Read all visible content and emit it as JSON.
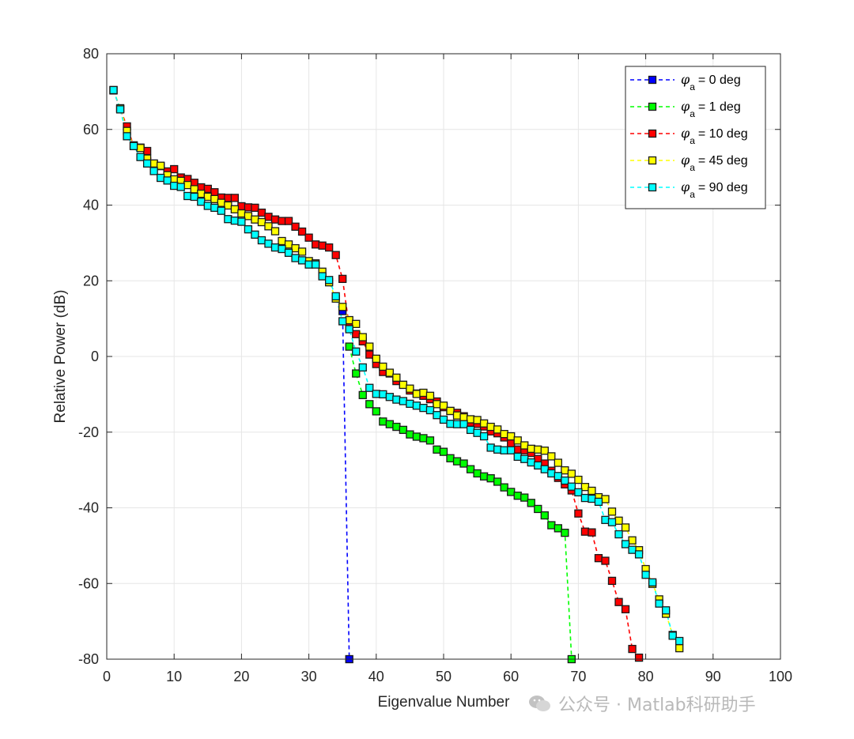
{
  "chart_data": {
    "type": "line",
    "title": "",
    "xlabel": "Eigenvalue Number",
    "ylabel": "Relative Power (dB)",
    "xlim": [
      0,
      100
    ],
    "ylim": [
      -80,
      80
    ],
    "xticks": [
      0,
      10,
      20,
      30,
      40,
      50,
      60,
      70,
      80,
      90,
      100
    ],
    "yticks": [
      80,
      60,
      40,
      20,
      0,
      -20,
      -40,
      -60,
      -80
    ],
    "grid": true,
    "legend_position": "top-right",
    "line_style": "dashed",
    "marker": "square",
    "series": [
      {
        "name": "= 0 deg",
        "symbol": "φ",
        "subscript": "a",
        "color": "#0000ff",
        "x": [
          35,
          36
        ],
        "y": [
          12,
          -80
        ]
      },
      {
        "name": "= 1 deg",
        "symbol": "φ",
        "subscript": "a",
        "color": "#00ff00",
        "x": [
          36,
          37,
          38,
          39,
          40,
          41,
          42,
          43,
          44,
          45,
          46,
          47,
          48,
          49,
          50,
          51,
          52,
          53,
          54,
          55,
          56,
          57,
          58,
          59,
          60,
          61,
          62,
          63,
          64,
          65,
          66,
          67,
          68,
          69
        ],
        "y": [
          2.6,
          -4.5,
          -10.2,
          -12.6,
          -14.5,
          -17.2,
          -17.9,
          -18.6,
          -19.4,
          -20.6,
          -21.2,
          -21.6,
          -22.2,
          -24.6,
          -25.2,
          -26.9,
          -27.7,
          -28.3,
          -29.8,
          -30.9,
          -31.7,
          -32.2,
          -33.1,
          -34.6,
          -35.8,
          -36.8,
          -37.3,
          -38.7,
          -40.3,
          -42.0,
          -44.6,
          -45.4,
          -46.6,
          -80
        ]
      },
      {
        "name": "= 10 deg",
        "symbol": "φ",
        "subscript": "a",
        "color": "#ff0000",
        "x": [
          1,
          2,
          3,
          4,
          5,
          6,
          7,
          8,
          9,
          10,
          11,
          12,
          13,
          14,
          15,
          16,
          17,
          18,
          19,
          20,
          21,
          22,
          23,
          24,
          25,
          26,
          27,
          28,
          29,
          30,
          31,
          32,
          33,
          34,
          35,
          36,
          37,
          38,
          39,
          40,
          41,
          42,
          43,
          44,
          45,
          46,
          47,
          48,
          49,
          50,
          51,
          52,
          53,
          54,
          55,
          56,
          57,
          58,
          59,
          60,
          61,
          62,
          63,
          64,
          65,
          66,
          67,
          68,
          69,
          70,
          71,
          72,
          73,
          74,
          75,
          76,
          77,
          78,
          79
        ],
        "y": [
          70.3,
          65.4,
          60.8,
          55.6,
          55.2,
          54.3,
          50.8,
          50.3,
          48.9,
          49.5,
          47.3,
          46.9,
          45.9,
          44.7,
          44.3,
          43.4,
          42.0,
          41.9,
          41.9,
          39.7,
          39.4,
          39.3,
          38.0,
          36.9,
          36.2,
          35.8,
          35.8,
          34.3,
          33.0,
          31.4,
          29.6,
          29.3,
          28.8,
          26.8,
          20.5,
          7.7,
          5.9,
          4.0,
          0.5,
          -2.0,
          -4.1,
          -4.5,
          -6.5,
          -7.5,
          -9.0,
          -9.8,
          -10.4,
          -11.3,
          -11.9,
          -13.4,
          -14.4,
          -14.9,
          -15.8,
          -17.5,
          -17.8,
          -18.5,
          -19.8,
          -20.3,
          -21.4,
          -23.0,
          -24.6,
          -24.8,
          -25.5,
          -27.1,
          -28.3,
          -30.2,
          -32.1,
          -33.8,
          -35.4,
          -41.5,
          -46.3,
          -46.5,
          -53.3,
          -54.0,
          -59.3,
          -64.9,
          -66.8,
          -77.3,
          -79.6
        ]
      },
      {
        "name": "= 45 deg",
        "symbol": "φ",
        "subscript": "a",
        "color": "#ffff00",
        "x": [
          1,
          2,
          3,
          4,
          5,
          6,
          7,
          8,
          9,
          10,
          11,
          12,
          13,
          14,
          15,
          16,
          17,
          18,
          19,
          20,
          21,
          22,
          23,
          24,
          25,
          26,
          27,
          28,
          29,
          30,
          31,
          32,
          33,
          34,
          35,
          36,
          37,
          38,
          39,
          40,
          41,
          42,
          43,
          44,
          45,
          46,
          47,
          48,
          49,
          50,
          51,
          52,
          53,
          54,
          55,
          56,
          57,
          58,
          59,
          60,
          61,
          62,
          63,
          64,
          65,
          66,
          67,
          68,
          69,
          70,
          71,
          72,
          73,
          74,
          75,
          76,
          77,
          78,
          79,
          80,
          81,
          82,
          83,
          84,
          85
        ],
        "y": [
          70.4,
          65.6,
          59.6,
          55.8,
          55.1,
          52.3,
          51.0,
          50.4,
          47.9,
          46.8,
          46.4,
          45.3,
          44.2,
          43.0,
          42.2,
          41.6,
          40.6,
          39.9,
          38.9,
          37.8,
          37.1,
          36.2,
          35.5,
          34.4,
          33.1,
          30.5,
          29.6,
          28.6,
          27.7,
          25.2,
          24.6,
          22.4,
          19.6,
          15.3,
          13.1,
          9.6,
          8.6,
          5.1,
          2.6,
          -0.6,
          -2.7,
          -4.3,
          -5.6,
          -7.5,
          -8.5,
          -9.9,
          -9.6,
          -10.4,
          -12.6,
          -13.0,
          -14.4,
          -15.6,
          -16.1,
          -16.6,
          -16.8,
          -17.7,
          -18.6,
          -19.3,
          -20.5,
          -21.1,
          -22.2,
          -23.5,
          -24.4,
          -24.6,
          -24.9,
          -26.4,
          -28.1,
          -30.1,
          -31.0,
          -32.6,
          -34.5,
          -35.5,
          -37.2,
          -37.7,
          -41.0,
          -43.4,
          -45.2,
          -48.6,
          -51.2,
          -56.2,
          -60.1,
          -64.2,
          -68.0,
          -73.6,
          -77.1
        ]
      },
      {
        "name": "= 90 deg",
        "symbol": "φ",
        "subscript": "a",
        "color": "#00ffff",
        "x": [
          1,
          2,
          3,
          4,
          5,
          6,
          7,
          8,
          9,
          10,
          11,
          12,
          13,
          14,
          15,
          16,
          17,
          18,
          19,
          20,
          21,
          22,
          23,
          24,
          25,
          26,
          27,
          28,
          29,
          30,
          31,
          32,
          33,
          34,
          35,
          36,
          37,
          38,
          39,
          40,
          41,
          42,
          43,
          44,
          45,
          46,
          47,
          48,
          49,
          50,
          51,
          52,
          53,
          54,
          55,
          56,
          57,
          58,
          59,
          60,
          61,
          62,
          63,
          64,
          65,
          66,
          67,
          68,
          69,
          70,
          71,
          72,
          73,
          74,
          75,
          76,
          77,
          78,
          79,
          80,
          81,
          82,
          83,
          84,
          85
        ],
        "y": [
          70.4,
          65.3,
          58.2,
          55.6,
          52.7,
          51.0,
          49.0,
          47.2,
          46.5,
          45.1,
          44.8,
          42.4,
          42.2,
          40.9,
          39.8,
          39.3,
          38.5,
          36.3,
          35.9,
          35.6,
          33.6,
          32.2,
          30.7,
          29.8,
          28.8,
          28.4,
          27.4,
          26.0,
          25.4,
          24.3,
          24.3,
          21.2,
          20.2,
          15.9,
          9.3,
          7.2,
          1.3,
          -2.9,
          -8.3,
          -9.9,
          -10.0,
          -10.7,
          -11.4,
          -11.8,
          -12.5,
          -13.0,
          -13.6,
          -14.2,
          -15.5,
          -16.7,
          -17.8,
          -17.9,
          -17.9,
          -19.4,
          -20.2,
          -21.1,
          -24.1,
          -24.6,
          -24.8,
          -24.8,
          -26.5,
          -27.1,
          -28.0,
          -28.8,
          -29.8,
          -30.9,
          -31.6,
          -32.8,
          -34.4,
          -35.9,
          -37.4,
          -37.6,
          -38.4,
          -43.2,
          -43.8,
          -47.0,
          -49.6,
          -51.1,
          -52.3,
          -57.7,
          -59.7,
          -65.3,
          -67.1,
          -73.8,
          -75.2
        ]
      }
    ]
  },
  "watermark": {
    "text": "公众号 · Matlab科研助手",
    "color": "#b9b9b9"
  }
}
